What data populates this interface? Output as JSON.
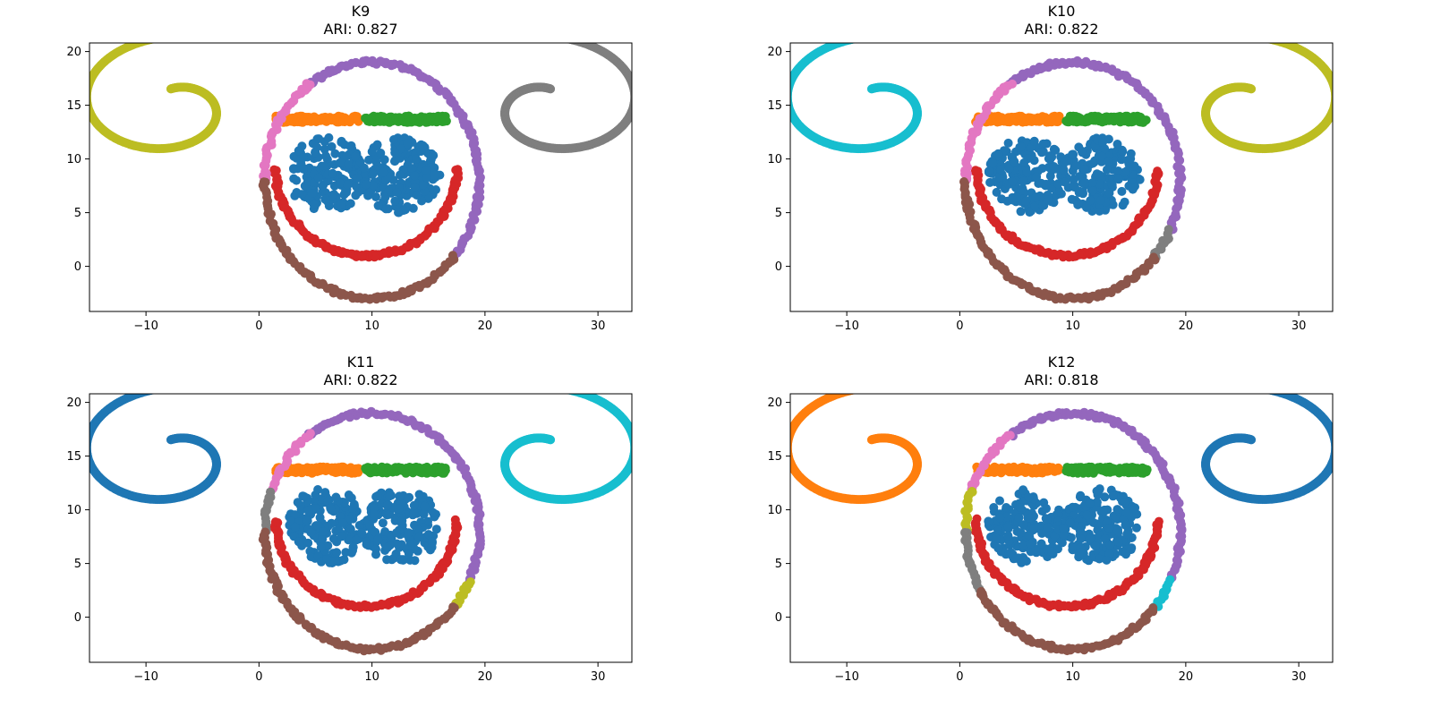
{
  "chart_data": [
    {
      "type": "scatter",
      "title": "K9",
      "subtitle": "ARI: 0.827",
      "xlim": [
        -15,
        33
      ],
      "ylim": [
        -4.2,
        20.8
      ],
      "xticks": [
        -10,
        0,
        10,
        20,
        30
      ],
      "yticks": [
        0,
        5,
        10,
        15,
        20
      ],
      "xtick_labels": [
        "−10",
        "0",
        "10",
        "20",
        "30"
      ],
      "ytick_labels": [
        "0",
        "5",
        "10",
        "15",
        "20"
      ],
      "grid": false,
      "series": [
        {
          "color": "#1f77b4",
          "shape": "eyes",
          "cx": [
            6.0,
            12.5
          ],
          "cy": 8.5,
          "r": 3.5
        },
        {
          "color": "#ff7f0e",
          "shape": "bar",
          "x0": 1.5,
          "x1": 8.8,
          "y": 13.7
        },
        {
          "color": "#2ca02c",
          "shape": "bar",
          "x0": 9.5,
          "x1": 16.5,
          "y": 13.7
        },
        {
          "color": "#d62728",
          "shape": "smile",
          "cx": 9.5,
          "cy": 9,
          "rx": 8,
          "ry": 8,
          "a0": 0,
          "a1": 180
        },
        {
          "color": "#9467bd",
          "shape": "arc",
          "cx": 10,
          "cy": 8,
          "rx": 9.5,
          "ry": 11,
          "a0": -40,
          "a1": 125
        },
        {
          "color": "#e377c2",
          "shape": "arc",
          "cx": 10,
          "cy": 8,
          "rx": 9.5,
          "ry": 11,
          "a0": 125,
          "a1": 180
        },
        {
          "color": "#8c564b",
          "shape": "arc",
          "cx": 10,
          "cy": 8,
          "rx": 9.5,
          "ry": 11,
          "a0": 180,
          "a1": 320
        },
        {
          "color": "#bcbd22",
          "shape": "spiral",
          "cx": -8.0,
          "cy": 15,
          "dir": 1
        },
        {
          "color": "#7f7f7f",
          "shape": "spiral",
          "cx": 26.0,
          "cy": 15,
          "dir": -1
        }
      ]
    },
    {
      "type": "scatter",
      "title": "K10",
      "subtitle": "ARI: 0.822",
      "xlim": [
        -15,
        33
      ],
      "ylim": [
        -4.2,
        20.8
      ],
      "xticks": [
        -10,
        0,
        10,
        20,
        30
      ],
      "yticks": [
        0,
        5,
        10,
        15,
        20
      ],
      "xtick_labels": [
        "−10",
        "0",
        "10",
        "20",
        "30"
      ],
      "ytick_labels": [
        "0",
        "5",
        "10",
        "15",
        "20"
      ],
      "grid": false,
      "series": [
        {
          "color": "#1f77b4",
          "shape": "eyes",
          "cx": [
            6.0,
            12.5
          ],
          "cy": 8.5,
          "r": 3.5
        },
        {
          "color": "#ff7f0e",
          "shape": "bar",
          "x0": 1.5,
          "x1": 8.8,
          "y": 13.7
        },
        {
          "color": "#2ca02c",
          "shape": "bar",
          "x0": 9.5,
          "x1": 16.5,
          "y": 13.7
        },
        {
          "color": "#d62728",
          "shape": "smile",
          "cx": 9.5,
          "cy": 9,
          "rx": 8,
          "ry": 8,
          "a0": 0,
          "a1": 180
        },
        {
          "color": "#9467bd",
          "shape": "arc",
          "cx": 10,
          "cy": 8,
          "rx": 9.5,
          "ry": 11,
          "a0": -25,
          "a1": 125
        },
        {
          "color": "#7f7f7f",
          "shape": "arc",
          "cx": 10,
          "cy": 8,
          "rx": 9.5,
          "ry": 11,
          "a0": -40,
          "a1": -25
        },
        {
          "color": "#e377c2",
          "shape": "arc",
          "cx": 10,
          "cy": 8,
          "rx": 9.5,
          "ry": 11,
          "a0": 125,
          "a1": 180
        },
        {
          "color": "#8c564b",
          "shape": "arc",
          "cx": 10,
          "cy": 8,
          "rx": 9.5,
          "ry": 11,
          "a0": 180,
          "a1": 320
        },
        {
          "color": "#17becf",
          "shape": "spiral",
          "cx": -8.0,
          "cy": 15,
          "dir": 1
        },
        {
          "color": "#bcbd22",
          "shape": "spiral",
          "cx": 26.0,
          "cy": 15,
          "dir": -1
        }
      ]
    },
    {
      "type": "scatter",
      "title": "K11",
      "subtitle": "ARI: 0.822",
      "xlim": [
        -15,
        33
      ],
      "ylim": [
        -4.2,
        20.8
      ],
      "xticks": [
        -10,
        0,
        10,
        20,
        30
      ],
      "yticks": [
        0,
        5,
        10,
        15,
        20
      ],
      "xtick_labels": [
        "−10",
        "0",
        "10",
        "20",
        "30"
      ],
      "ytick_labels": [
        "0",
        "5",
        "10",
        "15",
        "20"
      ],
      "grid": false,
      "series": [
        {
          "color": "#1f77b4",
          "shape": "eyes",
          "cx": [
            6.0,
            12.5
          ],
          "cy": 8.5,
          "r": 3.5
        },
        {
          "color": "#ff7f0e",
          "shape": "bar",
          "x0": 1.5,
          "x1": 8.8,
          "y": 13.7
        },
        {
          "color": "#2ca02c",
          "shape": "bar",
          "x0": 9.5,
          "x1": 16.5,
          "y": 13.7
        },
        {
          "color": "#d62728",
          "shape": "smile",
          "cx": 9.5,
          "cy": 9,
          "rx": 8,
          "ry": 8,
          "a0": 0,
          "a1": 180
        },
        {
          "color": "#9467bd",
          "shape": "arc",
          "cx": 10,
          "cy": 8,
          "rx": 9.5,
          "ry": 11,
          "a0": -25,
          "a1": 125
        },
        {
          "color": "#bcbd22",
          "shape": "arc",
          "cx": 10,
          "cy": 8,
          "rx": 9.5,
          "ry": 11,
          "a0": -40,
          "a1": -25
        },
        {
          "color": "#e377c2",
          "shape": "arc",
          "cx": 10,
          "cy": 8,
          "rx": 9.5,
          "ry": 11,
          "a0": 125,
          "a1": 160
        },
        {
          "color": "#7f7f7f",
          "shape": "arc",
          "cx": 10,
          "cy": 8,
          "rx": 9.5,
          "ry": 11,
          "a0": 160,
          "a1": 180
        },
        {
          "color": "#8c564b",
          "shape": "arc",
          "cx": 10,
          "cy": 8,
          "rx": 9.5,
          "ry": 11,
          "a0": 180,
          "a1": 320
        },
        {
          "color": "#1f77b4",
          "shape": "spiral",
          "cx": -8.0,
          "cy": 15,
          "dir": 1
        },
        {
          "color": "#17becf",
          "shape": "spiral",
          "cx": 26.0,
          "cy": 15,
          "dir": -1
        }
      ]
    },
    {
      "type": "scatter",
      "title": "K12",
      "subtitle": "ARI: 0.818",
      "xlim": [
        -15,
        33
      ],
      "ylim": [
        -4.2,
        20.8
      ],
      "xticks": [
        -10,
        0,
        10,
        20,
        30
      ],
      "yticks": [
        0,
        5,
        10,
        15,
        20
      ],
      "xtick_labels": [
        "−10",
        "0",
        "10",
        "20",
        "30"
      ],
      "ytick_labels": [
        "0",
        "5",
        "10",
        "15",
        "20"
      ],
      "grid": false,
      "series": [
        {
          "color": "#1f77b4",
          "shape": "eyes",
          "cx": [
            6.0,
            12.5
          ],
          "cy": 8.5,
          "r": 3.5
        },
        {
          "color": "#ff7f0e",
          "shape": "bar",
          "x0": 1.5,
          "x1": 8.8,
          "y": 13.7
        },
        {
          "color": "#2ca02c",
          "shape": "bar",
          "x0": 9.5,
          "x1": 16.5,
          "y": 13.7
        },
        {
          "color": "#d62728",
          "shape": "smile",
          "cx": 9.5,
          "cy": 9,
          "rx": 8,
          "ry": 8,
          "a0": 0,
          "a1": 180
        },
        {
          "color": "#9467bd",
          "shape": "arc",
          "cx": 10,
          "cy": 8,
          "rx": 9.5,
          "ry": 11,
          "a0": -25,
          "a1": 125
        },
        {
          "color": "#17becf",
          "shape": "arc",
          "cx": 10,
          "cy": 8,
          "rx": 9.5,
          "ry": 11,
          "a0": -40,
          "a1": -25
        },
        {
          "color": "#e377c2",
          "shape": "arc",
          "cx": 10,
          "cy": 8,
          "rx": 9.5,
          "ry": 11,
          "a0": 125,
          "a1": 160
        },
        {
          "color": "#bcbd22",
          "shape": "arc",
          "cx": 10,
          "cy": 8,
          "rx": 9.5,
          "ry": 11,
          "a0": 160,
          "a1": 180
        },
        {
          "color": "#7f7f7f",
          "shape": "arc",
          "cx": 10,
          "cy": 8,
          "rx": 9.5,
          "ry": 11,
          "a0": 180,
          "a1": 210
        },
        {
          "color": "#8c564b",
          "shape": "arc",
          "cx": 10,
          "cy": 8,
          "rx": 9.5,
          "ry": 11,
          "a0": 210,
          "a1": 320
        },
        {
          "color": "#ff7f0e",
          "shape": "spiral",
          "cx": -8.0,
          "cy": 15,
          "dir": 1
        },
        {
          "color": "#1f77b4",
          "shape": "spiral",
          "cx": 26.0,
          "cy": 15,
          "dir": -1
        }
      ]
    }
  ]
}
